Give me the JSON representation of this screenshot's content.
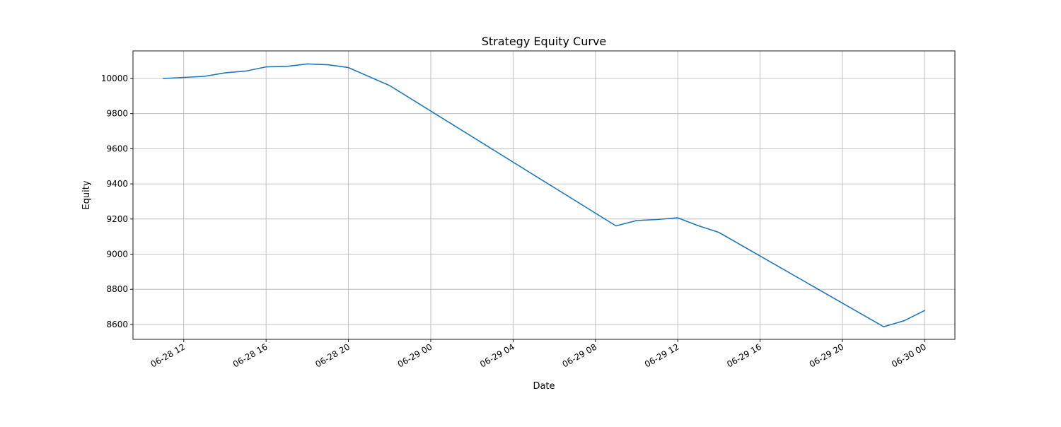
{
  "chart_data": {
    "type": "line",
    "title": "Strategy Equity Curve",
    "xlabel": "Date",
    "ylabel": "Equity",
    "x_scale": "time",
    "xlim": [
      "2018-06-28 09:32",
      "2018-06-30 01:28"
    ],
    "ylim": [
      8515,
      10157
    ],
    "grid": true,
    "legend": "none",
    "colors": {
      "series": "#1f77b4",
      "grid": "#b0b0b0",
      "frame": "#000000"
    },
    "x_ticks": [
      {
        "value": "2018-06-28 12:00",
        "label": "06-28 12"
      },
      {
        "value": "2018-06-28 16:00",
        "label": "06-28 16"
      },
      {
        "value": "2018-06-28 20:00",
        "label": "06-28 20"
      },
      {
        "value": "2018-06-29 00:00",
        "label": "06-29 00"
      },
      {
        "value": "2018-06-29 04:00",
        "label": "06-29 04"
      },
      {
        "value": "2018-06-29 08:00",
        "label": "06-29 08"
      },
      {
        "value": "2018-06-29 12:00",
        "label": "06-29 12"
      },
      {
        "value": "2018-06-29 16:00",
        "label": "06-29 16"
      },
      {
        "value": "2018-06-29 20:00",
        "label": "06-29 20"
      },
      {
        "value": "2018-06-30 00:00",
        "label": "06-30 00"
      }
    ],
    "y_ticks": [
      {
        "value": 8600,
        "label": "8600"
      },
      {
        "value": 8800,
        "label": "8800"
      },
      {
        "value": 9000,
        "label": "9000"
      },
      {
        "value": 9200,
        "label": "9200"
      },
      {
        "value": 9400,
        "label": "9400"
      },
      {
        "value": 9600,
        "label": "9600"
      },
      {
        "value": 9800,
        "label": "9800"
      },
      {
        "value": 10000,
        "label": "10000"
      }
    ],
    "series": [
      {
        "x": [
          "2018-06-28 11:00",
          "2018-06-28 12:00",
          "2018-06-28 13:00",
          "2018-06-28 14:00",
          "2018-06-28 15:00",
          "2018-06-28 16:00",
          "2018-06-28 17:00",
          "2018-06-28 18:00",
          "2018-06-28 19:00",
          "2018-06-28 20:00",
          "2018-06-28 22:00",
          "2018-06-29 09:00",
          "2018-06-29 10:00",
          "2018-06-29 11:00",
          "2018-06-29 12:00",
          "2018-06-29 13:00",
          "2018-06-29 14:00",
          "2018-06-29 22:00",
          "2018-06-29 23:00",
          "2018-06-30 00:00"
        ],
        "y": [
          10000,
          10006,
          10012,
          10032,
          10042,
          10066,
          10069,
          10083,
          10078,
          10062,
          9960,
          9161,
          9191,
          9197,
          9207,
          9162,
          9124,
          8587,
          8621,
          8679
        ]
      }
    ]
  }
}
